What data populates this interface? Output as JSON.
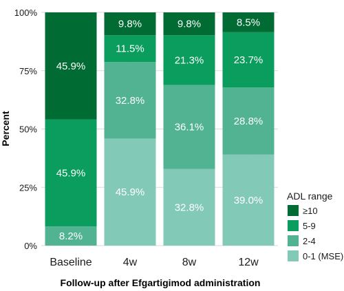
{
  "chart_data": {
    "type": "bar",
    "stacked": true,
    "categories": [
      "Baseline",
      "4w",
      "8w",
      "12w"
    ],
    "series": [
      {
        "name": "0-1 (MSE)",
        "values": [
          0,
          45.9,
          32.8,
          39.0
        ],
        "labels": [
          "",
          "45.9%",
          "32.8%",
          "39.0%"
        ],
        "color": "#83c9b8"
      },
      {
        "name": "2-4",
        "values": [
          8.2,
          32.8,
          36.1,
          28.8
        ],
        "labels": [
          "8.2%",
          "32.8%",
          "36.1%",
          "28.8%"
        ],
        "color": "#52b393"
      },
      {
        "name": "5-9",
        "values": [
          45.9,
          11.5,
          21.3,
          23.7
        ],
        "labels": [
          "45.9%",
          "11.5%",
          "21.3%",
          "23.7%"
        ],
        "color": "#0a9d5e"
      },
      {
        "name": "≥10",
        "values": [
          45.9,
          9.8,
          9.8,
          8.5
        ],
        "labels": [
          "45.9%",
          "9.8%",
          "9.8%",
          "8.5%"
        ],
        "color": "#006b32"
      }
    ],
    "xlabel": "Follow-up after Efgartigimod administration",
    "ylabel": "Percent",
    "ylim": [
      0,
      100
    ],
    "yticks": [
      0,
      25,
      50,
      75,
      100
    ],
    "ytick_labels": [
      "0%",
      "25%",
      "50%",
      "75%",
      "100%"
    ],
    "grid": true,
    "legend": {
      "title": "ADL range",
      "placement": "right",
      "order": [
        "≥10",
        "5-9",
        "2-4",
        "0-1 (MSE)"
      ]
    }
  }
}
